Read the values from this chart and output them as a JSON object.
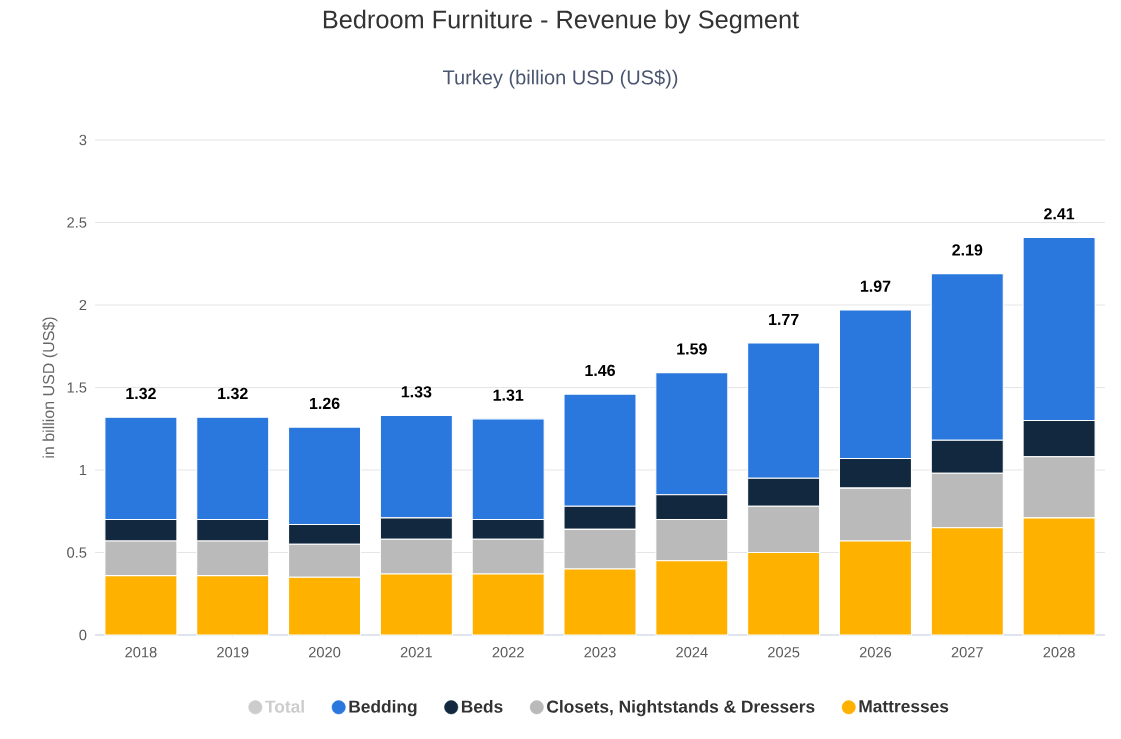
{
  "chart_data": {
    "type": "bar",
    "stacked": true,
    "title": "Bedroom Furniture - Revenue by Segment",
    "subtitle": "Turkey (billion USD (US$))",
    "ylabel": "in billion USD (US$)",
    "categories": [
      "2018",
      "2019",
      "2020",
      "2021",
      "2022",
      "2023",
      "2024",
      "2025",
      "2026",
      "2027",
      "2028"
    ],
    "series": [
      {
        "name": "Mattresses",
        "color": "#ffb100",
        "values": [
          0.36,
          0.36,
          0.35,
          0.37,
          0.37,
          0.4,
          0.45,
          0.5,
          0.57,
          0.65,
          0.71
        ]
      },
      {
        "name": "Closets, Nightstands & Dressers",
        "color": "#bababa",
        "values": [
          0.21,
          0.21,
          0.2,
          0.21,
          0.21,
          0.24,
          0.25,
          0.28,
          0.32,
          0.33,
          0.37
        ]
      },
      {
        "name": "Beds",
        "color": "#12283f",
        "values": [
          0.13,
          0.13,
          0.12,
          0.13,
          0.12,
          0.14,
          0.15,
          0.17,
          0.18,
          0.2,
          0.22
        ]
      },
      {
        "name": "Bedding",
        "color": "#2a78dd",
        "values": [
          0.62,
          0.62,
          0.59,
          0.62,
          0.61,
          0.68,
          0.74,
          0.82,
          0.9,
          1.01,
          1.11
        ]
      },
      {
        "name": "Total",
        "color": "#cccccc",
        "values": [
          null,
          null,
          null,
          null,
          null,
          null,
          null,
          null,
          null,
          null,
          null
        ]
      }
    ],
    "totals": [
      "1.32",
      "1.32",
      "1.26",
      "1.33",
      "1.31",
      "1.46",
      "1.59",
      "1.77",
      "1.97",
      "2.19",
      "2.41"
    ],
    "ylim": [
      0,
      3
    ],
    "yticks": [
      0,
      0.5,
      1,
      1.5,
      2,
      2.5,
      3
    ],
    "grid": "y",
    "legend": "bottom"
  }
}
